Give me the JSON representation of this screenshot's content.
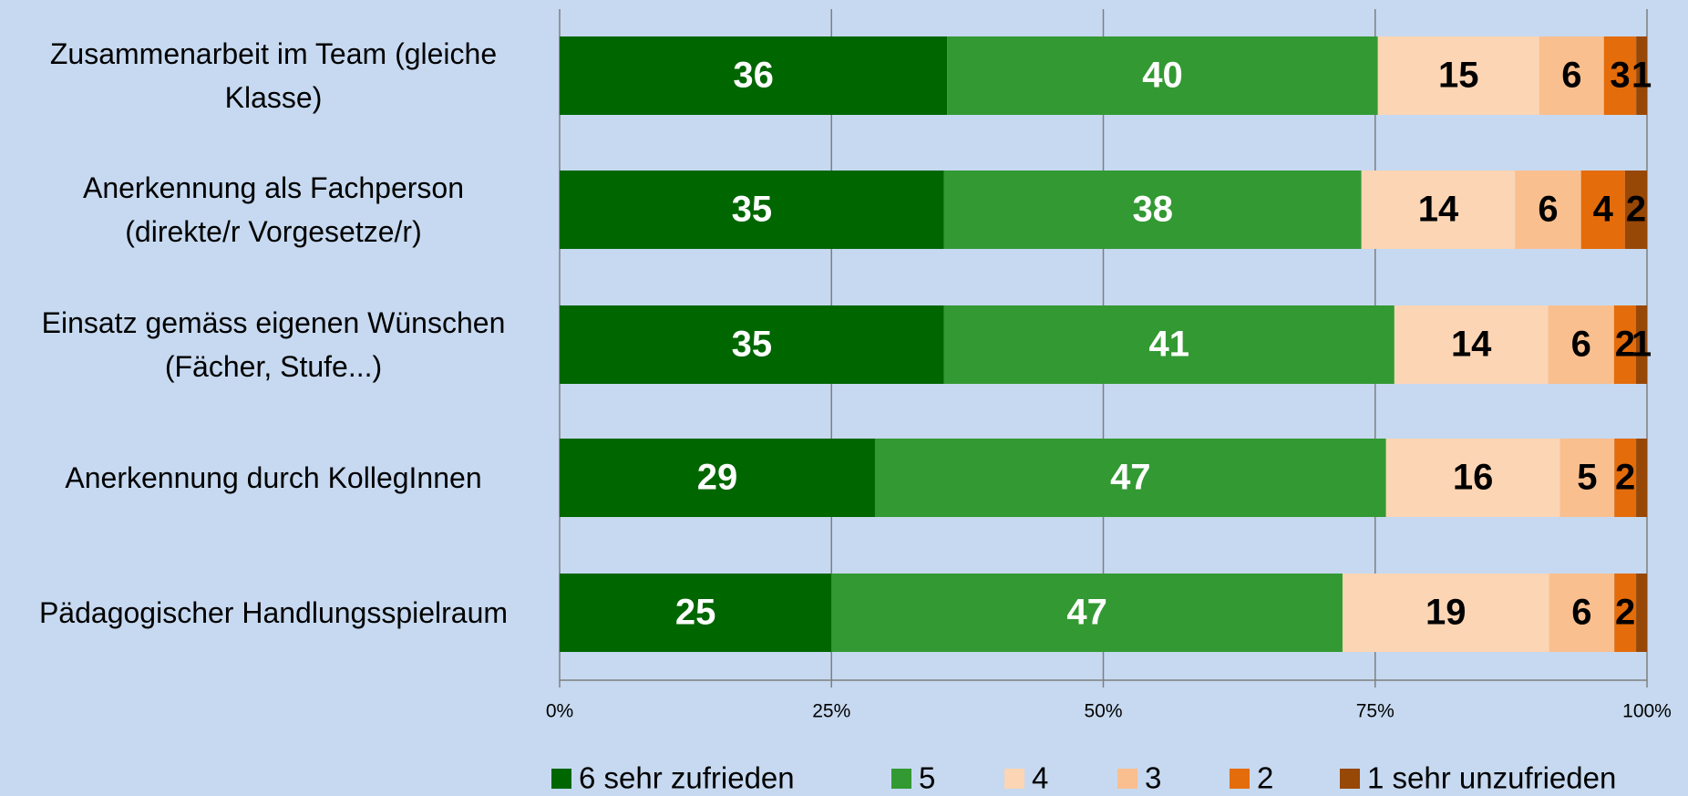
{
  "chart_data": {
    "type": "stacked-bar-100",
    "categories": [
      "Zusammenarbeit im Team (gleiche Klasse)",
      "Anerkennung als Fachperson (direkte/r Vorgesetze/r)",
      "Einsatz gemäss eigenen Wünschen (Fächer, Stufe...)",
      "Anerkennung durch KollegInnen",
      "Pädagogischer Handlungsspielraum"
    ],
    "series": [
      {
        "name": "6 sehr zufrieden",
        "color": "#006600",
        "values": [
          36,
          35,
          35,
          29,
          25
        ]
      },
      {
        "name": "5",
        "color": "#339933",
        "values": [
          40,
          38,
          41,
          47,
          47
        ]
      },
      {
        "name": "4",
        "color": "#fcd5b4",
        "values": [
          15,
          14,
          14,
          16,
          19
        ]
      },
      {
        "name": "3",
        "color": "#fabf8f",
        "values": [
          6,
          6,
          6,
          5,
          6
        ]
      },
      {
        "name": "2",
        "color": "#e46c0a",
        "values": [
          3,
          4,
          2,
          2,
          2
        ]
      },
      {
        "name": "1 sehr unzufrieden",
        "color": "#974706",
        "values": [
          1,
          2,
          1,
          1,
          1
        ],
        "value_labels": [
          1,
          2,
          1,
          null,
          null
        ]
      }
    ],
    "xlim": [
      0,
      100
    ],
    "xticks": [
      {
        "value": 0,
        "label": "0%"
      },
      {
        "value": 25,
        "label": "25%"
      },
      {
        "value": 50,
        "label": "50%"
      },
      {
        "value": 75,
        "label": "75%"
      },
      {
        "value": 100,
        "label": "100%"
      }
    ],
    "grid": true,
    "legend": "bottom"
  }
}
